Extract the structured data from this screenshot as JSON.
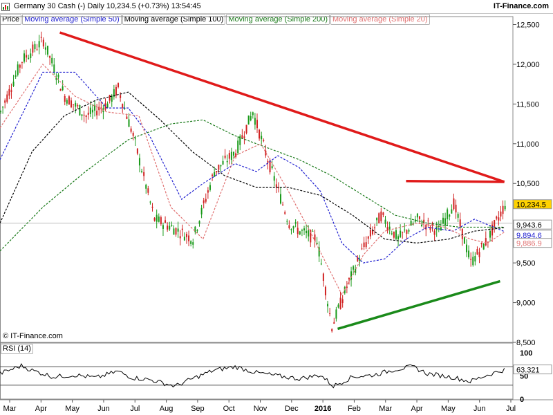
{
  "header": {
    "title": "Germany 30 Cash (-)   Daily   10,234.5 (+0.73%)   13:54:45",
    "brand": "IT-Finance.com"
  },
  "legend": [
    {
      "label": "Price",
      "color": "#000000"
    },
    {
      "label": "Moving average (Simple 50)",
      "color": "#1f1fd0"
    },
    {
      "label": "Moving average (Simple 100)",
      "color": "#000000"
    },
    {
      "label": "Moving average (Simple 200)",
      "color": "#1a7a1a"
    },
    {
      "label": "Moving average (Simple 20)",
      "color": "#e07070"
    }
  ],
  "copyright": "© IT-Finance.com",
  "rsi_label": "RSI (14)",
  "chart_data": {
    "type": "line",
    "instrument": "Germany 30 Cash (-)",
    "timeframe": "Daily",
    "last_price": "10,234.5",
    "change": "+0.73%",
    "time": "13:54:45",
    "x_labels": [
      "Mar",
      "Apr",
      "May",
      "Jun",
      "Jul",
      "Aug",
      "Sep",
      "Oct",
      "Nov",
      "Dec",
      "2016",
      "Feb",
      "Mar",
      "Apr",
      "May",
      "Jun",
      "Jul"
    ],
    "y_ticks": [
      "12,500",
      "12,000",
      "11,500",
      "11,000",
      "10,500",
      "10,000",
      "9,500",
      "9,000",
      "8,500"
    ],
    "ylim": [
      8500,
      12600
    ],
    "series": [
      {
        "name": "Price",
        "color": "#000000",
        "values": [
          [
            0,
            11400
          ],
          [
            10,
            12050
          ],
          [
            20,
            12300
          ],
          [
            30,
            11600
          ],
          [
            40,
            11350
          ],
          [
            50,
            11500
          ],
          [
            55,
            11700
          ],
          [
            62,
            11100
          ],
          [
            72,
            10050
          ],
          [
            80,
            9950
          ],
          [
            90,
            9800
          ],
          [
            100,
            10650
          ],
          [
            110,
            10900
          ],
          [
            118,
            11400
          ],
          [
            125,
            10800
          ],
          [
            135,
            10000
          ],
          [
            140,
            9900
          ],
          [
            148,
            9800
          ],
          [
            155,
            8700
          ],
          [
            162,
            9200
          ],
          [
            170,
            9700
          ],
          [
            178,
            10100
          ],
          [
            186,
            9800
          ],
          [
            195,
            10050
          ],
          [
            205,
            9900
          ],
          [
            212,
            10250
          ],
          [
            220,
            9500
          ],
          [
            228,
            9800
          ],
          [
            236,
            10234.5
          ]
        ]
      },
      {
        "name": "Moving average (Simple 50)",
        "color": "#1f1fd0",
        "values": [
          [
            0,
            10800
          ],
          [
            20,
            11900
          ],
          [
            35,
            11900
          ],
          [
            50,
            11450
          ],
          [
            60,
            11450
          ],
          [
            70,
            11100
          ],
          [
            85,
            10300
          ],
          [
            95,
            10500
          ],
          [
            110,
            10750
          ],
          [
            120,
            10650
          ],
          [
            130,
            10850
          ],
          [
            140,
            10700
          ],
          [
            150,
            10400
          ],
          [
            160,
            9750
          ],
          [
            170,
            9500
          ],
          [
            180,
            9550
          ],
          [
            190,
            9800
          ],
          [
            200,
            9950
          ],
          [
            212,
            9900
          ],
          [
            222,
            10050
          ],
          [
            236,
            9894.6
          ]
        ]
      },
      {
        "name": "Moving average (Simple 100)",
        "color": "#000000",
        "values": [
          [
            0,
            10000
          ],
          [
            15,
            10900
          ],
          [
            30,
            11350
          ],
          [
            45,
            11550
          ],
          [
            60,
            11650
          ],
          [
            75,
            11300
          ],
          [
            90,
            10900
          ],
          [
            105,
            10600
          ],
          [
            120,
            10450
          ],
          [
            135,
            10450
          ],
          [
            150,
            10350
          ],
          [
            165,
            10100
          ],
          [
            180,
            9800
          ],
          [
            195,
            9750
          ],
          [
            210,
            9800
          ],
          [
            222,
            9900
          ],
          [
            236,
            9943.6
          ]
        ]
      },
      {
        "name": "Moving average (Simple 200)",
        "color": "#1a7a1a",
        "values": [
          [
            0,
            9650
          ],
          [
            20,
            10200
          ],
          [
            40,
            10650
          ],
          [
            60,
            11050
          ],
          [
            80,
            11250
          ],
          [
            95,
            11300
          ],
          [
            110,
            11100
          ],
          [
            125,
            10950
          ],
          [
            140,
            10800
          ],
          [
            155,
            10600
          ],
          [
            170,
            10350
          ],
          [
            185,
            10100
          ],
          [
            200,
            10000
          ],
          [
            215,
            9950
          ],
          [
            236,
            9950
          ]
        ]
      },
      {
        "name": "Moving average (Simple 20)",
        "color": "#e07070",
        "values": [
          [
            0,
            11200
          ],
          [
            20,
            12000
          ],
          [
            35,
            11600
          ],
          [
            50,
            11400
          ],
          [
            65,
            11350
          ],
          [
            80,
            10200
          ],
          [
            95,
            9800
          ],
          [
            110,
            10850
          ],
          [
            122,
            11000
          ],
          [
            135,
            10400
          ],
          [
            145,
            9900
          ],
          [
            160,
            9100
          ],
          [
            170,
            9600
          ],
          [
            180,
            9900
          ],
          [
            195,
            10000
          ],
          [
            208,
            9950
          ],
          [
            220,
            9800
          ],
          [
            228,
            9750
          ],
          [
            236,
            9886.9
          ]
        ]
      }
    ],
    "price_labels": [
      {
        "text": "10,234.5",
        "value": 10234.5,
        "bg": "#ffd200",
        "fg": "#000000"
      },
      {
        "text": "9,943.6",
        "value": 9943.6,
        "bg": "#ffffff",
        "fg": "#000000"
      },
      {
        "text": "9,894.6",
        "value": 9894.6,
        "bg": "#ffffff",
        "fg": "#1f1fd0"
      },
      {
        "text": "9,886.9",
        "value": 9886.9,
        "bg": "#ffffff",
        "fg": "#e07070"
      }
    ],
    "trendlines": [
      {
        "color": "#e01a1a",
        "from": [
          28,
          12400
        ],
        "to": [
          236,
          10520
        ]
      },
      {
        "color": "#e01a1a",
        "from": [
          190,
          10530
        ],
        "to": [
          236,
          10520
        ]
      },
      {
        "color": "#1a8a1a",
        "from": [
          158,
          8670
        ],
        "to": [
          234,
          9270
        ]
      }
    ],
    "rsi": {
      "label": "RSI (14)",
      "y_ticks": [
        "100",
        "50",
        "0"
      ],
      "levels": [
        70,
        30
      ],
      "last": "63.321",
      "values": [
        [
          0,
          55
        ],
        [
          10,
          72
        ],
        [
          15,
          62
        ],
        [
          25,
          48
        ],
        [
          35,
          52
        ],
        [
          45,
          46
        ],
        [
          55,
          60
        ],
        [
          62,
          46
        ],
        [
          70,
          42
        ],
        [
          82,
          28
        ],
        [
          90,
          44
        ],
        [
          100,
          62
        ],
        [
          110,
          70
        ],
        [
          120,
          57
        ],
        [
          130,
          50
        ],
        [
          140,
          44
        ],
        [
          150,
          52
        ],
        [
          156,
          28
        ],
        [
          165,
          48
        ],
        [
          175,
          52
        ],
        [
          185,
          64
        ],
        [
          193,
          70
        ],
        [
          200,
          55
        ],
        [
          212,
          47
        ],
        [
          220,
          38
        ],
        [
          228,
          52
        ],
        [
          236,
          63.3
        ]
      ]
    }
  }
}
